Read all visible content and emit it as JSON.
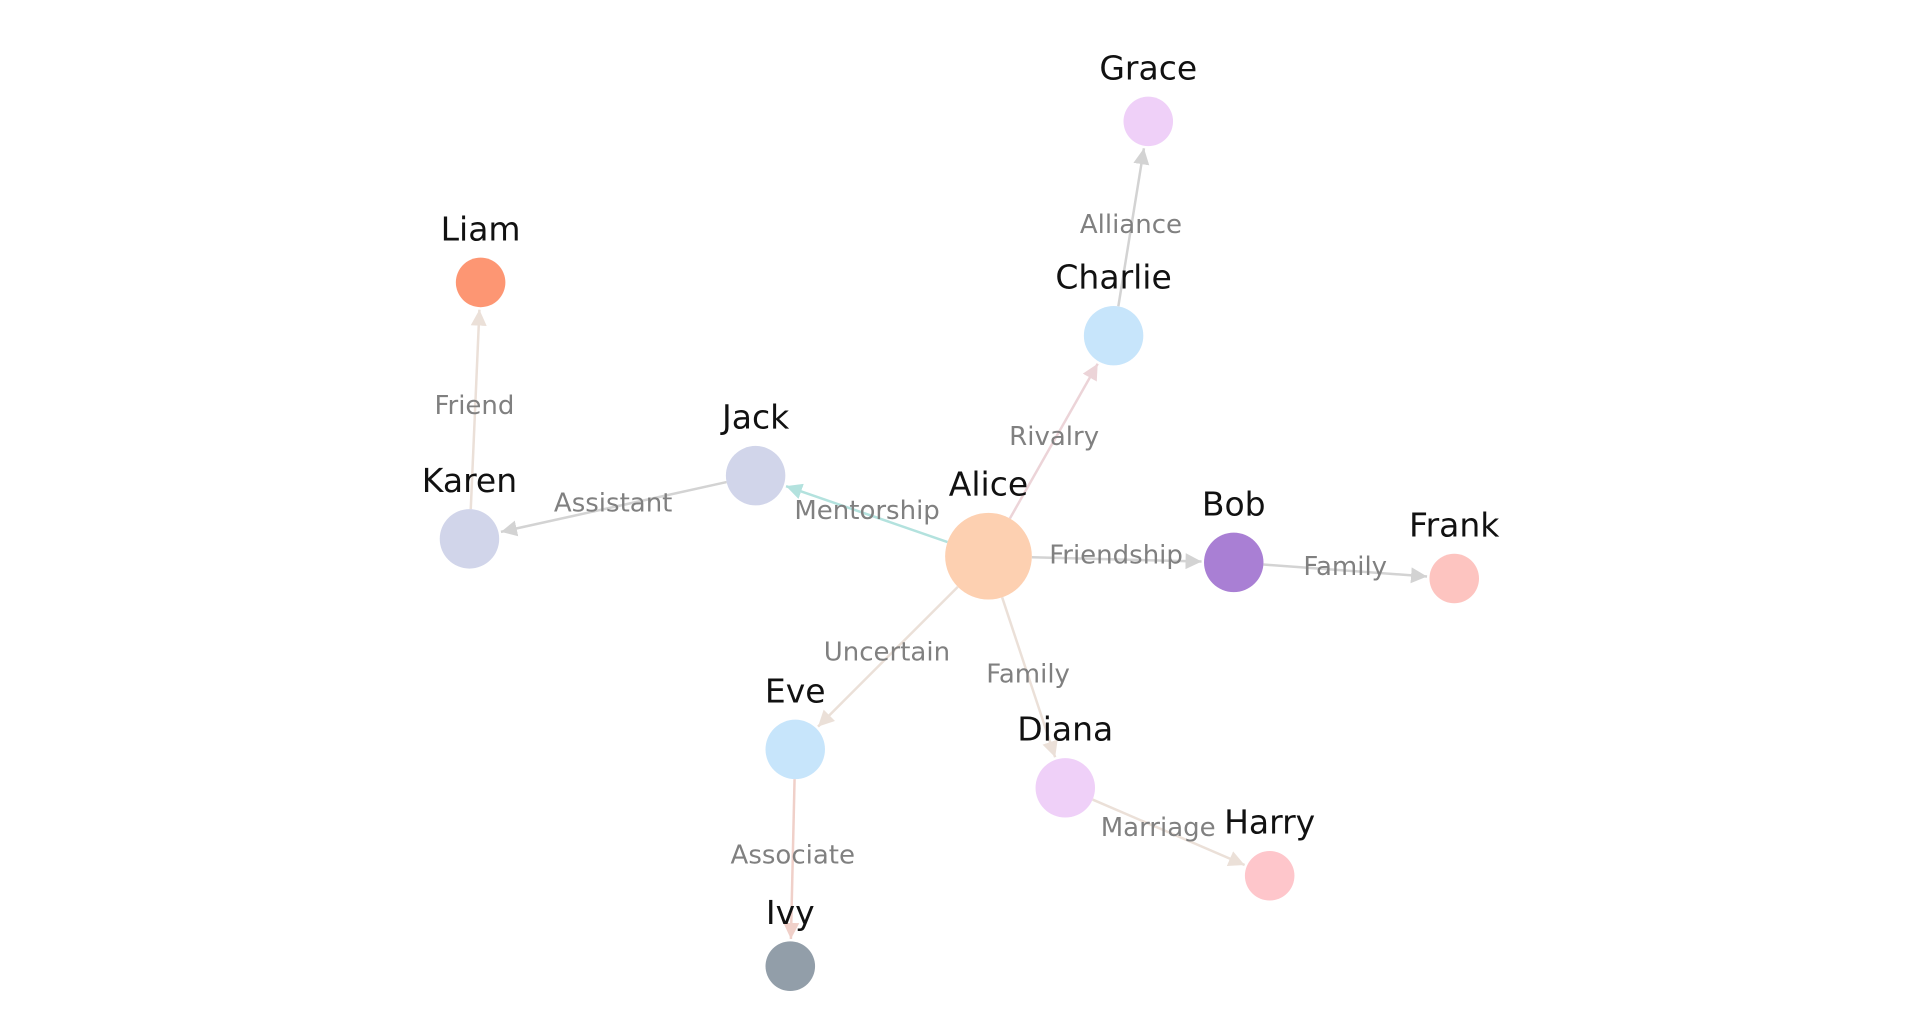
{
  "nodes": [
    {
      "label": "Alice"
    },
    {
      "label": "Bob"
    },
    {
      "label": "Charlie"
    },
    {
      "label": "Diana"
    },
    {
      "label": "Eve"
    },
    {
      "label": "Frank"
    },
    {
      "label": "Grace"
    },
    {
      "label": "Harry"
    },
    {
      "label": "Ivy"
    },
    {
      "label": "Jack"
    },
    {
      "label": "Karen"
    },
    {
      "label": "Liam"
    }
  ],
  "edges": [
    {
      "label": "Rivalry"
    },
    {
      "label": "Alliance"
    },
    {
      "label": "Mentorship"
    },
    {
      "label": "Assistant"
    },
    {
      "label": "Friend"
    },
    {
      "label": "Friendship"
    },
    {
      "label": "Family"
    },
    {
      "label": "Family"
    },
    {
      "label": "Marriage"
    },
    {
      "label": "Uncertain"
    },
    {
      "label": "Associate"
    }
  ]
}
